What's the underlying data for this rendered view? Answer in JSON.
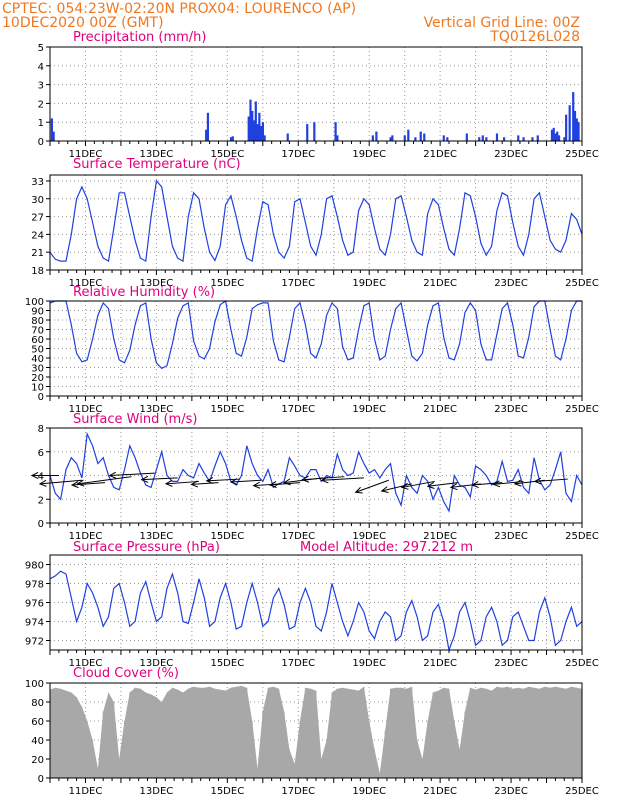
{
  "header": {
    "line1": "CPTEC:   054:23W-02:20N   PROX04: LOURENCO (AP)",
    "line2": "10DEC2020 00Z (GMT)",
    "grid_note": "Vertical Grid Line: 00Z",
    "run_code": "TQ0126L028"
  },
  "colors": {
    "header": "#f07820",
    "title": "#e0007e",
    "series": "#2040e0",
    "cloud": "#a8a8a8",
    "grid": "#999999"
  },
  "x_axis": {
    "start_day": 10,
    "end_day": 25,
    "tick_labels": [
      "11DEC",
      "13DEC",
      "15DEC",
      "17DEC",
      "19DEC",
      "21DEC",
      "23DEC",
      "25DEC"
    ]
  },
  "chart_data": [
    {
      "id": "precip",
      "type": "bar",
      "title": "Precipitation (mm/h)",
      "ylim": [
        0,
        5
      ],
      "yticks": [
        0,
        1,
        2,
        3,
        4,
        5
      ],
      "x": [
        10.05,
        10.1,
        14.4,
        14.45,
        15.1,
        15.15,
        15.6,
        15.65,
        15.7,
        15.75,
        15.8,
        15.85,
        15.9,
        15.95,
        16.0,
        16.05,
        16.7,
        17.25,
        17.45,
        18.05,
        18.1,
        19.1,
        19.2,
        19.6,
        19.65,
        20.0,
        20.1,
        20.3,
        20.45,
        20.55,
        21.1,
        21.2,
        21.75,
        22.1,
        22.2,
        22.3,
        22.6,
        22.8,
        23.2,
        23.35,
        23.6,
        23.75,
        24.15,
        24.2,
        24.25,
        24.3,
        24.35,
        24.5,
        24.55,
        24.65,
        24.75,
        24.8,
        24.85,
        24.9
      ],
      "values": [
        1.2,
        0.5,
        0.6,
        1.5,
        0.2,
        0.25,
        1.3,
        2.2,
        1.6,
        1.1,
        2.1,
        0.9,
        1.5,
        0.8,
        1.0,
        0.3,
        0.4,
        0.9,
        1.0,
        1.0,
        0.3,
        0.3,
        0.5,
        0.2,
        0.3,
        0.3,
        0.6,
        0.2,
        0.5,
        0.4,
        0.3,
        0.2,
        0.4,
        0.2,
        0.3,
        0.2,
        0.4,
        0.2,
        0.3,
        0.2,
        0.2,
        0.3,
        0.6,
        0.7,
        0.4,
        0.5,
        0.3,
        0.2,
        1.4,
        1.9,
        2.6,
        1.6,
        1.2,
        1.0
      ]
    },
    {
      "id": "temp",
      "type": "line",
      "title": "Surface Temperature (nC)",
      "ylim": [
        18,
        34
      ],
      "yticks": [
        18,
        21,
        24,
        27,
        30,
        33
      ],
      "x": [
        10.0,
        10.15,
        10.3,
        10.45,
        10.6,
        10.75,
        10.9,
        11.05,
        11.2,
        11.35,
        11.5,
        11.65,
        11.8,
        11.95,
        12.1,
        12.25,
        12.4,
        12.55,
        12.7,
        12.85,
        13.0,
        13.15,
        13.3,
        13.45,
        13.6,
        13.75,
        13.9,
        14.05,
        14.2,
        14.35,
        14.5,
        14.65,
        14.8,
        14.95,
        15.1,
        15.25,
        15.4,
        15.55,
        15.7,
        15.85,
        16.0,
        16.15,
        16.3,
        16.45,
        16.6,
        16.75,
        16.9,
        17.05,
        17.2,
        17.35,
        17.5,
        17.65,
        17.8,
        17.95,
        18.1,
        18.25,
        18.4,
        18.55,
        18.7,
        18.85,
        19.0,
        19.15,
        19.3,
        19.45,
        19.6,
        19.75,
        19.9,
        20.05,
        20.2,
        20.35,
        20.5,
        20.65,
        20.8,
        20.95,
        21.1,
        21.25,
        21.4,
        21.55,
        21.7,
        21.85,
        22.0,
        22.15,
        22.3,
        22.45,
        22.6,
        22.75,
        22.9,
        23.05,
        23.2,
        23.35,
        23.5,
        23.65,
        23.8,
        23.95,
        24.1,
        24.25,
        24.4,
        24.55,
        24.7,
        24.85,
        25.0
      ],
      "values": [
        21,
        19.8,
        19.5,
        19.5,
        24,
        30,
        32,
        30,
        26,
        22,
        20,
        19.5,
        25,
        31,
        31,
        27,
        23,
        20,
        19.5,
        27,
        33,
        32,
        27,
        22,
        20,
        19.5,
        27,
        31,
        30,
        25,
        21,
        19.6,
        22,
        29,
        30.5,
        27,
        23,
        20,
        19.5,
        25,
        29.5,
        29,
        24,
        21,
        20,
        22,
        29.5,
        30,
        26,
        22,
        20.5,
        24,
        30,
        30.5,
        27,
        23,
        20.5,
        21,
        28,
        30,
        29,
        25,
        21.5,
        20.5,
        24,
        30,
        30.5,
        27,
        23,
        21,
        20.5,
        27.5,
        30,
        29,
        25,
        21.5,
        20.5,
        25,
        31,
        30.5,
        27,
        22.5,
        20.5,
        22,
        28,
        31,
        30.5,
        26,
        22,
        20.5,
        24,
        30,
        31,
        27,
        23,
        21.5,
        21,
        23,
        27.5,
        26.5,
        24
      ]
    },
    {
      "id": "rh",
      "type": "line",
      "title": "Relative Humidity (%)",
      "ylim": [
        0,
        100
      ],
      "yticks": [
        0,
        10,
        20,
        30,
        40,
        50,
        60,
        70,
        80,
        90,
        100
      ],
      "x": [
        10.0,
        10.15,
        10.3,
        10.45,
        10.6,
        10.75,
        10.9,
        11.05,
        11.2,
        11.35,
        11.5,
        11.65,
        11.8,
        11.95,
        12.1,
        12.25,
        12.4,
        12.55,
        12.7,
        12.85,
        13.0,
        13.15,
        13.3,
        13.45,
        13.6,
        13.75,
        13.9,
        14.05,
        14.2,
        14.35,
        14.5,
        14.65,
        14.8,
        14.95,
        15.1,
        15.25,
        15.4,
        15.55,
        15.7,
        15.85,
        16.0,
        16.15,
        16.3,
        16.45,
        16.6,
        16.75,
        16.9,
        17.05,
        17.2,
        17.35,
        17.5,
        17.65,
        17.8,
        17.95,
        18.1,
        18.25,
        18.4,
        18.55,
        18.7,
        18.85,
        19.0,
        19.15,
        19.3,
        19.45,
        19.6,
        19.75,
        19.9,
        20.05,
        20.2,
        20.35,
        20.5,
        20.65,
        20.8,
        20.95,
        21.1,
        21.25,
        21.4,
        21.55,
        21.7,
        21.85,
        22.0,
        22.15,
        22.3,
        22.45,
        22.6,
        22.75,
        22.9,
        23.05,
        23.2,
        23.35,
        23.5,
        23.65,
        23.8,
        23.95,
        24.1,
        24.25,
        24.4,
        24.55,
        24.7,
        24.85,
        25.0
      ],
      "values": [
        98,
        100,
        100,
        100,
        75,
        45,
        36,
        38,
        60,
        85,
        98,
        92,
        60,
        38,
        35,
        48,
        75,
        95,
        98,
        60,
        35,
        29,
        32,
        55,
        82,
        95,
        98,
        58,
        42,
        39,
        50,
        78,
        96,
        100,
        70,
        45,
        42,
        62,
        92,
        96,
        98,
        98,
        58,
        38,
        36,
        62,
        92,
        98,
        75,
        45,
        40,
        55,
        85,
        98,
        92,
        52,
        38,
        40,
        70,
        95,
        98,
        60,
        38,
        42,
        70,
        92,
        98,
        70,
        42,
        37,
        45,
        75,
        95,
        98,
        62,
        40,
        38,
        55,
        88,
        98,
        90,
        55,
        38,
        38,
        65,
        92,
        98,
        75,
        42,
        40,
        62,
        94,
        100,
        100,
        70,
        42,
        38,
        60,
        90,
        100,
        100
      ]
    },
    {
      "id": "wind",
      "type": "line",
      "title": "Surface Wind (m/s)",
      "ylim": [
        0,
        8
      ],
      "yticks": [
        0,
        2,
        4,
        6,
        8
      ],
      "x": [
        10.0,
        10.15,
        10.3,
        10.45,
        10.6,
        10.75,
        10.9,
        11.05,
        11.2,
        11.35,
        11.5,
        11.65,
        11.8,
        11.95,
        12.1,
        12.25,
        12.4,
        12.55,
        12.7,
        12.85,
        13.0,
        13.15,
        13.3,
        13.45,
        13.6,
        13.75,
        13.9,
        14.05,
        14.2,
        14.35,
        14.5,
        14.65,
        14.8,
        14.95,
        15.1,
        15.25,
        15.4,
        15.55,
        15.7,
        15.85,
        16.0,
        16.15,
        16.3,
        16.45,
        16.6,
        16.75,
        16.9,
        17.05,
        17.2,
        17.35,
        17.5,
        17.65,
        17.8,
        17.95,
        18.1,
        18.25,
        18.4,
        18.55,
        18.7,
        18.85,
        19.0,
        19.15,
        19.3,
        19.45,
        19.6,
        19.75,
        19.9,
        20.05,
        20.2,
        20.35,
        20.5,
        20.65,
        20.8,
        20.95,
        21.1,
        21.25,
        21.4,
        21.55,
        21.7,
        21.85,
        22.0,
        22.15,
        22.3,
        22.45,
        22.6,
        22.75,
        22.9,
        23.05,
        23.2,
        23.35,
        23.5,
        23.65,
        23.8,
        23.95,
        24.1,
        24.25,
        24.4,
        24.55,
        24.7,
        24.85,
        25.0
      ],
      "values": [
        4,
        2.5,
        2,
        4.5,
        5.5,
        5,
        3.8,
        7.5,
        6.5,
        5,
        5.5,
        4,
        3,
        2.8,
        4.5,
        6.5,
        5.5,
        4.2,
        3.2,
        3,
        4.5,
        6,
        4,
        3.5,
        3.5,
        4.5,
        4,
        3.8,
        5,
        4.2,
        3.5,
        4.8,
        6,
        5,
        3.5,
        3.2,
        4,
        6.5,
        5,
        4,
        3.5,
        4.5,
        3,
        3.3,
        3.5,
        5.5,
        4.8,
        4,
        3.8,
        4.5,
        4.5,
        3.5,
        4,
        3.8,
        5.8,
        4.5,
        4,
        4.2,
        6,
        5,
        4.2,
        4.5,
        3.8,
        4.5,
        5,
        2.5,
        1.5,
        4,
        3,
        2.5,
        4,
        3.5,
        2,
        3,
        1.8,
        1,
        4,
        3.2,
        3,
        2.2,
        4.8,
        4.5,
        4,
        3.2,
        3.5,
        5.2,
        3.5,
        3.6,
        4.5,
        3,
        2.5,
        5.5,
        3.6,
        2.8,
        3.2,
        4.5,
        6,
        2.5,
        1.8,
        4,
        3.2
      ],
      "arrow_x": [
        10.25,
        10.9,
        11.55,
        12.3,
        12.95,
        13.6,
        14.2,
        14.75,
        15.35,
        15.95,
        16.5,
        17.05,
        17.7,
        18.3,
        18.85,
        19.55,
        20.2,
        20.85,
        21.5,
        22.15,
        22.75,
        23.35,
        23.95,
        24.6
      ],
      "arrow_speed": [
        4.0,
        3.6,
        3.4,
        3.9,
        4.2,
        3.8,
        3.5,
        3.4,
        3.7,
        3.6,
        3.3,
        3.4,
        3.8,
        3.9,
        3.8,
        3.6,
        3.3,
        3.5,
        3.4,
        3.3,
        3.4,
        3.5,
        3.6,
        3.7
      ],
      "arrow_dx": [
        -0.45,
        -0.7,
        -0.55,
        -0.9,
        -0.75,
        -0.6,
        -0.55,
        -0.45,
        -0.55,
        -0.5,
        -0.45,
        -0.5,
        -0.65,
        -0.7,
        -0.7,
        -0.55,
        -0.5,
        -0.55,
        -0.5,
        -0.5,
        -0.5,
        -0.5,
        -0.5,
        -0.55
      ],
      "arrow_dy": [
        0,
        -0.6,
        -0.4,
        -1.2,
        -0.4,
        -0.3,
        -0.4,
        -0.3,
        -0.3,
        -0.3,
        -0.3,
        -0.4,
        -0.8,
        -0.5,
        -0.4,
        -2.0,
        -1.2,
        -1.0,
        -0.6,
        -0.6,
        -0.4,
        -0.5,
        -0.6,
        -0.4
      ]
    },
    {
      "id": "pres",
      "type": "line",
      "title": "Surface Pressure (hPa)",
      "ylim": [
        971,
        981
      ],
      "yticks": [
        972,
        974,
        976,
        978,
        980
      ],
      "note": "Model Altitude: 297.212 m",
      "x": [
        10.0,
        10.15,
        10.3,
        10.45,
        10.6,
        10.75,
        10.9,
        11.05,
        11.2,
        11.35,
        11.5,
        11.65,
        11.8,
        11.95,
        12.1,
        12.25,
        12.4,
        12.55,
        12.7,
        12.85,
        13.0,
        13.15,
        13.3,
        13.45,
        13.6,
        13.75,
        13.9,
        14.05,
        14.2,
        14.35,
        14.5,
        14.65,
        14.8,
        14.95,
        15.1,
        15.25,
        15.4,
        15.55,
        15.7,
        15.85,
        16.0,
        16.15,
        16.3,
        16.45,
        16.6,
        16.75,
        16.9,
        17.05,
        17.2,
        17.35,
        17.5,
        17.65,
        17.8,
        17.95,
        18.1,
        18.25,
        18.4,
        18.55,
        18.7,
        18.85,
        19.0,
        19.15,
        19.3,
        19.45,
        19.6,
        19.75,
        19.9,
        20.05,
        20.2,
        20.35,
        20.5,
        20.65,
        20.8,
        20.95,
        21.1,
        21.25,
        21.4,
        21.55,
        21.7,
        21.85,
        22.0,
        22.15,
        22.3,
        22.45,
        22.6,
        22.75,
        22.9,
        23.05,
        23.2,
        23.35,
        23.5,
        23.65,
        23.8,
        23.95,
        24.1,
        24.25,
        24.4,
        24.55,
        24.7,
        24.85,
        25.0
      ],
      "values": [
        978.5,
        978.8,
        979.3,
        979,
        976.5,
        974,
        975.5,
        978,
        977,
        975.5,
        973.5,
        974.5,
        977.5,
        978,
        976,
        973.5,
        974,
        977,
        978.2,
        976,
        974,
        974.5,
        977.5,
        979,
        977,
        974,
        973.8,
        976,
        978.5,
        976.5,
        973.5,
        974,
        976.5,
        978,
        976,
        973.2,
        973.5,
        976,
        978,
        976,
        973.5,
        974,
        976.5,
        977.5,
        975.8,
        973.2,
        973.5,
        976,
        977.5,
        976,
        973.5,
        973,
        975,
        978,
        976,
        974,
        972.5,
        974,
        976,
        975,
        973,
        972.2,
        974,
        975,
        974.5,
        972,
        972.5,
        975,
        976.2,
        974.5,
        972,
        972.5,
        975,
        975.8,
        974,
        971,
        972.5,
        975,
        976,
        974,
        971.5,
        972,
        974.5,
        975.5,
        974,
        971.5,
        972,
        974.5,
        975,
        973.5,
        972,
        972,
        975,
        976.5,
        974.5,
        971.5,
        972,
        974,
        975.5,
        973.5,
        974
      ]
    },
    {
      "id": "cloud",
      "type": "area",
      "title": "Cloud Cover (%)",
      "ylim": [
        0,
        100
      ],
      "yticks": [
        0,
        20,
        40,
        60,
        80,
        100
      ],
      "x": [
        10.0,
        10.15,
        10.3,
        10.45,
        10.6,
        10.75,
        10.9,
        11.05,
        11.2,
        11.35,
        11.5,
        11.65,
        11.8,
        11.95,
        12.1,
        12.25,
        12.4,
        12.55,
        12.7,
        12.85,
        13.0,
        13.15,
        13.3,
        13.45,
        13.6,
        13.75,
        13.9,
        14.05,
        14.2,
        14.35,
        14.5,
        14.65,
        14.8,
        14.95,
        15.1,
        15.25,
        15.4,
        15.55,
        15.7,
        15.85,
        16.0,
        16.15,
        16.3,
        16.45,
        16.6,
        16.75,
        16.9,
        17.05,
        17.2,
        17.35,
        17.5,
        17.65,
        17.8,
        17.95,
        18.1,
        18.25,
        18.4,
        18.55,
        18.7,
        18.85,
        19.0,
        19.15,
        19.3,
        19.45,
        19.6,
        19.75,
        19.9,
        20.05,
        20.2,
        20.35,
        20.5,
        20.65,
        20.8,
        20.95,
        21.1,
        21.25,
        21.4,
        21.55,
        21.7,
        21.85,
        22.0,
        22.15,
        22.3,
        22.45,
        22.6,
        22.75,
        22.9,
        23.05,
        23.2,
        23.35,
        23.5,
        23.65,
        23.8,
        23.95,
        24.1,
        24.25,
        24.4,
        24.55,
        24.7,
        24.85,
        25.0
      ],
      "values": [
        93,
        95,
        94,
        92,
        90,
        85,
        75,
        60,
        40,
        10,
        70,
        90,
        80,
        20,
        60,
        90,
        95,
        94,
        90,
        88,
        85,
        80,
        90,
        95,
        93,
        90,
        94,
        96,
        95,
        95,
        96,
        94,
        93,
        92,
        95,
        96,
        97,
        95,
        60,
        10,
        70,
        95,
        96,
        94,
        70,
        30,
        15,
        60,
        95,
        94,
        92,
        20,
        40,
        90,
        94,
        95,
        94,
        93,
        92,
        96,
        60,
        30,
        5,
        50,
        94,
        95,
        95,
        94,
        96,
        40,
        20,
        60,
        90,
        92,
        95,
        94,
        60,
        30,
        70,
        95,
        93,
        95,
        94,
        92,
        96,
        95,
        96,
        94,
        95,
        94,
        96,
        95,
        94,
        96,
        95,
        96,
        95,
        94,
        96,
        95,
        94
      ]
    }
  ]
}
